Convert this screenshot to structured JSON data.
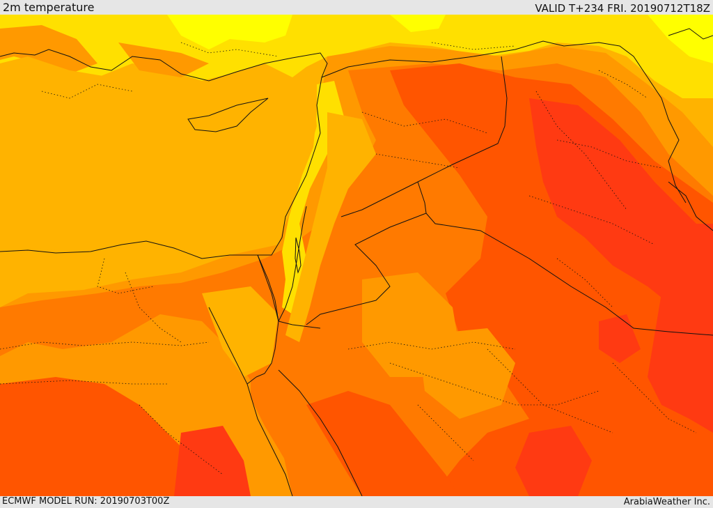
{
  "header": {
    "title": "2m temperature",
    "valid": "VALID T+234 FRI. 20190712T18Z"
  },
  "footer": {
    "model_run": "ECMWF MODEL RUN: 20190703T00Z",
    "credit": "ArabiaWeather Inc."
  },
  "palette": {
    "sea_light": "#ffb300",
    "cool_yellow": "#ffe000",
    "bright_yellow": "#ffff00",
    "warm_orange": "#ff9900",
    "orange": "#ff7a00",
    "deep_orange": "#ff5500",
    "red_orange": "#ff3a12",
    "border_line": "#111111"
  }
}
